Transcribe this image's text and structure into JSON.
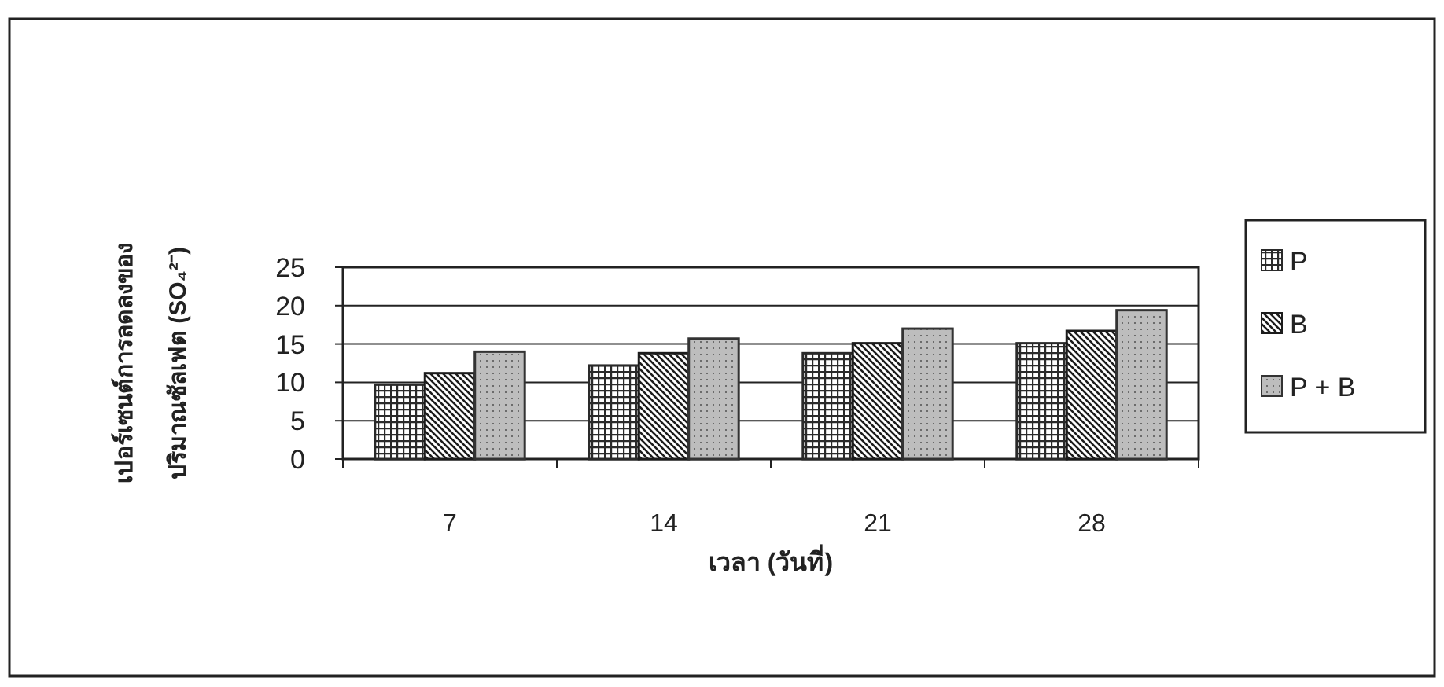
{
  "chart_data": {
    "type": "bar",
    "xlabel": "เวลา (วันที่)",
    "ylabel": "เปอร์เซนต์การลดลงของ\nปริมาณซัลเฟต (SO₄²⁻)",
    "categories": [
      "7",
      "14",
      "21",
      "28"
    ],
    "series": [
      {
        "name": "P",
        "color": "#2a2a2a",
        "values": [
          9.7,
          12.2,
          13.8,
          15.1
        ]
      },
      {
        "name": "B",
        "color": "#1c1c1c",
        "values": [
          11.2,
          13.8,
          15.1,
          16.7
        ]
      },
      {
        "name": "P + B",
        "color": "#333333",
        "values": [
          14.0,
          15.7,
          17.0,
          19.4
        ]
      }
    ],
    "ylim": [
      0,
      25
    ],
    "yticks": [
      0,
      5,
      10,
      15,
      20,
      25
    ],
    "grid": "y",
    "legend": "right"
  }
}
